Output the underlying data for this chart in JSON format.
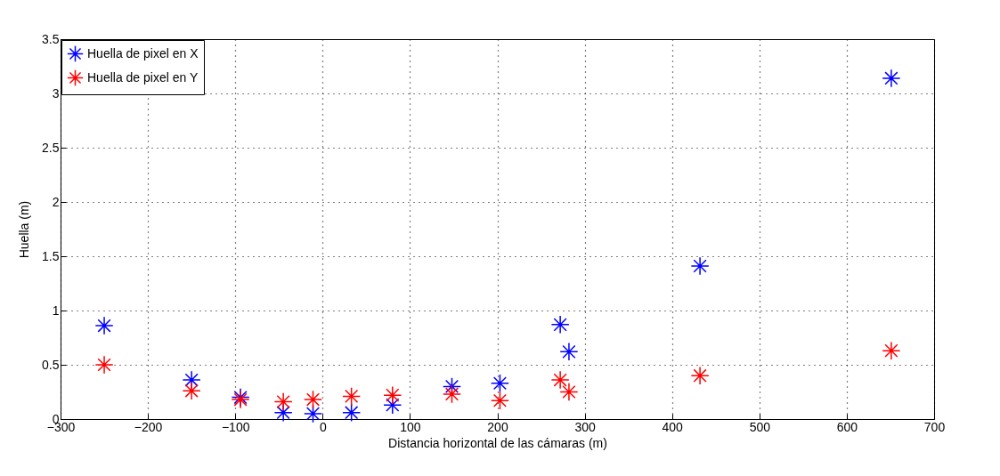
{
  "chart_data": {
    "type": "scatter",
    "xlabel": "Distancia horizontal de las cámaras (m)",
    "ylabel": "Huella (m)",
    "x": [
      -250,
      -150,
      -94,
      -45,
      -11,
      33,
      80,
      148,
      203,
      272,
      282,
      432,
      651
    ],
    "series": [
      {
        "name": "Huella de pixel en X",
        "color": "#0000ff",
        "values": [
          0.86,
          0.36,
          0.2,
          0.06,
          0.05,
          0.06,
          0.13,
          0.3,
          0.33,
          0.87,
          0.62,
          1.41,
          3.14
        ]
      },
      {
        "name": "Huella de pixel en Y",
        "color": "#ff0000",
        "values": [
          0.5,
          0.26,
          0.18,
          0.16,
          0.18,
          0.21,
          0.22,
          0.23,
          0.17,
          0.36,
          0.25,
          0.4,
          0.63
        ]
      }
    ],
    "xlim": [
      -300,
      700
    ],
    "xticks": [
      -300,
      -200,
      -100,
      0,
      100,
      200,
      300,
      400,
      500,
      600,
      700
    ],
    "ylim": [
      0,
      3.5
    ],
    "yticks": [
      0,
      0.5,
      1,
      1.5,
      2,
      2.5,
      3,
      3.5
    ],
    "grid": true,
    "legend": "top left",
    "marker": "cross"
  }
}
